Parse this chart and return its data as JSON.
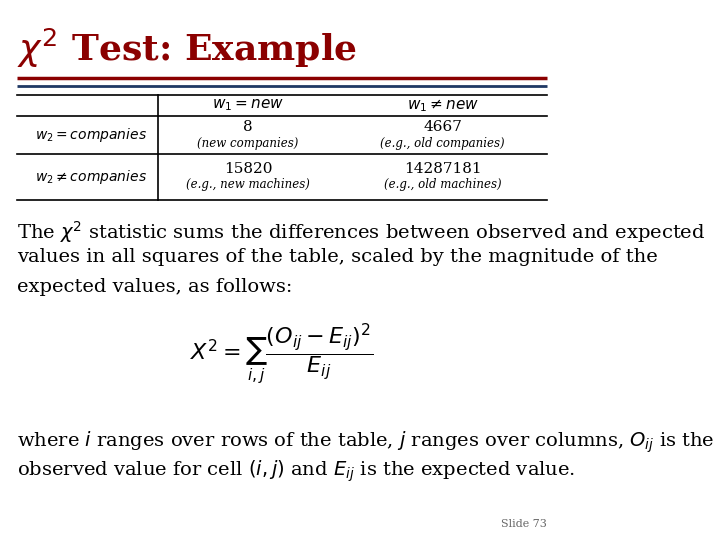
{
  "title": "$\\chi^2$ Test: Example",
  "title_color": "#8B0000",
  "title_fontsize": 26,
  "line1_color": "#8B0000",
  "line2_color": "#1F3864",
  "bg_color": "#FFFFFF",
  "text_color": "#000000",
  "body_fontsize": 14,
  "para1_line1": "The $\\chi^2$ statistic sums the differences between observed and expected",
  "para1_line2": "values in all squares of the table, scaled by the magnitude of the",
  "para1_line3": "expected values, as follows:",
  "formula": "$X^2 = \\sum_{i,j} \\dfrac{(O_{ij} - E_{ij})^2}{E_{ij}}$",
  "para2_line1": "where $i$ ranges over rows of the table, $j$ ranges over columns, $O_{ij}$ is the",
  "para2_line2": "observed value for cell $(i, j)$ and $E_{ij}$ is the expected value.",
  "slide_num": "Slide 73",
  "table": {
    "col_headers": [
      "$w_1 = new$",
      "$w_1 \\neq new$"
    ],
    "row_headers": [
      "$w_2 = companies$",
      "$w_2 \\neq companies$"
    ],
    "data": [
      [
        "8",
        "4667"
      ],
      [
        "15820",
        "14287181"
      ]
    ],
    "sub_data": [
      [
        "(new companies)",
        "(e.g., old companies)"
      ],
      [
        "(e.g., new machines)",
        "(e.g., old machines)"
      ]
    ]
  }
}
